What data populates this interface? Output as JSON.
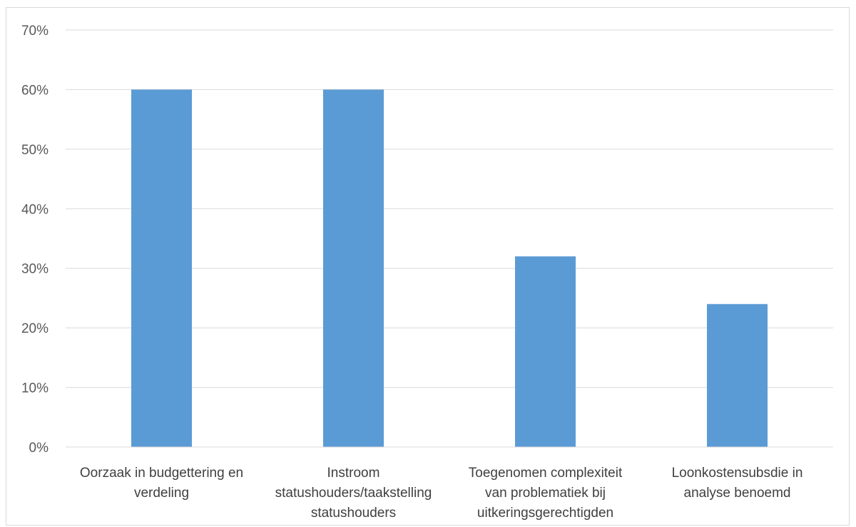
{
  "chart_data": {
    "type": "bar",
    "title": "",
    "xlabel": "",
    "ylabel": "",
    "categories": [
      [
        "Oorzaak in budgettering en",
        "verdeling"
      ],
      [
        "Instroom",
        "statushouders/taakstelling",
        "statushouders"
      ],
      [
        "Toegenomen complexiteit",
        "van problematiek bij",
        "uitkeringsgerechtigden"
      ],
      [
        "Loonkostensubsdie in",
        "analyse benoemd"
      ]
    ],
    "values": [
      0.6,
      0.6,
      0.32,
      0.24
    ],
    "ylim": [
      0,
      0.7
    ],
    "yticks": [
      "0%",
      "10%",
      "20%",
      "30%",
      "40%",
      "50%",
      "60%",
      "70%"
    ],
    "grid": true,
    "legend": "none",
    "bar_color": "#5b9bd5",
    "grid_color": "#d9d9d9"
  }
}
